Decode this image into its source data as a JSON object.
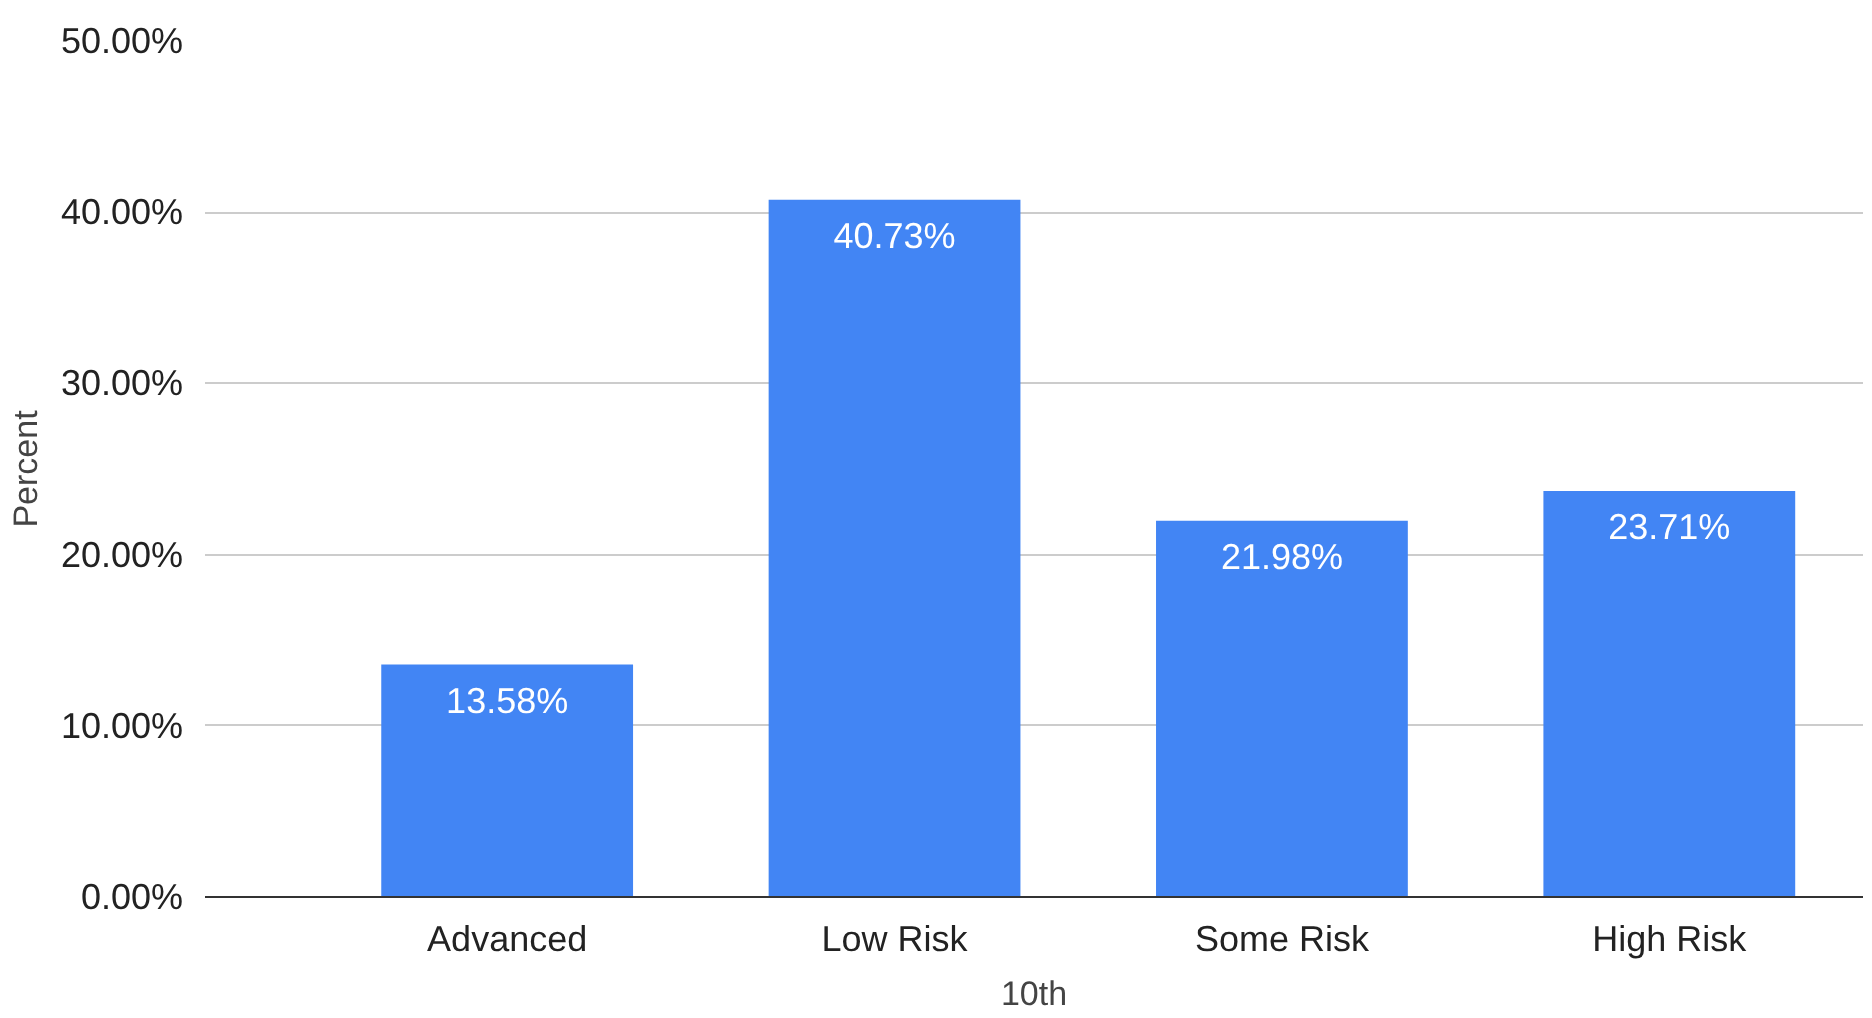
{
  "chart_data": {
    "type": "bar",
    "xlabel": "10th",
    "ylabel": "Percent",
    "categories": [
      "Advanced",
      "Low Risk",
      "Some Risk",
      "High Risk"
    ],
    "values": [
      13.58,
      40.73,
      21.98,
      23.71
    ],
    "value_labels": [
      "13.58%",
      "40.73%",
      "21.98%",
      "23.71%"
    ],
    "color": "#4285f4",
    "ylim": [
      0,
      50
    ],
    "yticks": [
      {
        "value": 0,
        "label": "0.00%"
      },
      {
        "value": 10,
        "label": "10.00%"
      },
      {
        "value": 20,
        "label": "20.00%"
      },
      {
        "value": 30,
        "label": "30.00%"
      },
      {
        "value": 40,
        "label": "40.00%"
      },
      {
        "value": 50,
        "label": "50.00%"
      }
    ],
    "grid": "y"
  }
}
